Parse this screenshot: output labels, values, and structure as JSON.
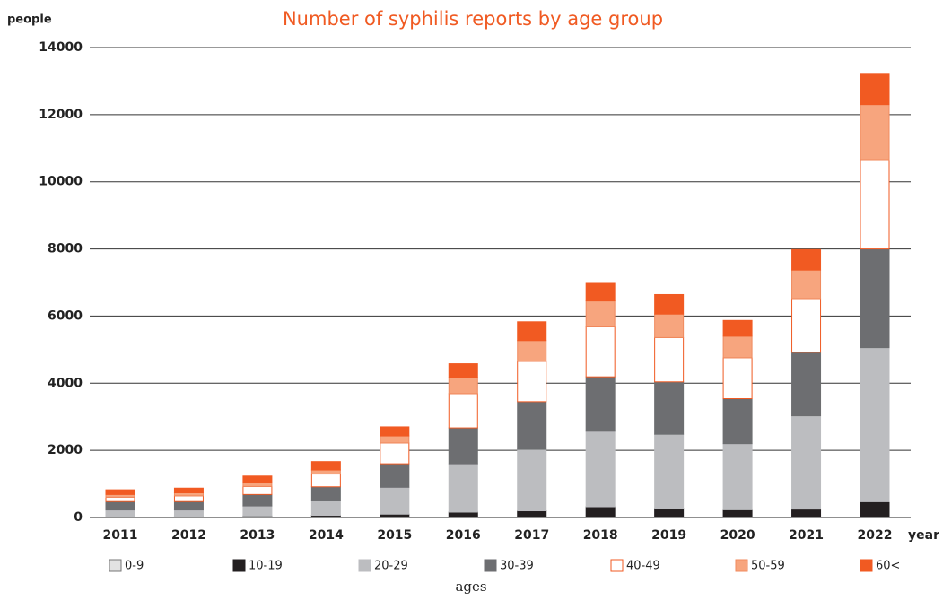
{
  "chart_data": {
    "type": "stacked_bar",
    "title": "Number of syphilis reports by age group",
    "y_label": "people",
    "x_label": "year",
    "legend_title": "ages",
    "categories": [
      "2011",
      "2012",
      "2013",
      "2014",
      "2015",
      "2016",
      "2017",
      "2018",
      "2019",
      "2020",
      "2021",
      "2022"
    ],
    "series": [
      {
        "name": "0-9",
        "color": "#e2e2e2",
        "edgecolor": "#777777",
        "values": [
          5,
          5,
          5,
          5,
          5,
          5,
          5,
          5,
          5,
          5,
          5,
          5
        ]
      },
      {
        "name": "10-19",
        "color": "#231f20",
        "edgecolor": "#231f20",
        "values": [
          20,
          20,
          40,
          60,
          95,
          155,
          195,
          315,
          275,
          225,
          245,
          465
        ]
      },
      {
        "name": "20-29",
        "color": "#bcbdc0",
        "edgecolor": "#bcbdc0",
        "values": [
          200,
          200,
          300,
          430,
          800,
          1440,
          1830,
          2250,
          2200,
          1970,
          2780,
          4590
        ]
      },
      {
        "name": "30-39",
        "color": "#6d6e71",
        "edgecolor": "#6d6e71",
        "values": [
          250,
          250,
          340,
          420,
          700,
          1070,
          1420,
          1620,
          1560,
          1340,
          1890,
          2940
        ]
      },
      {
        "name": "40-49",
        "color": "#ffffff",
        "edgecolor": "#f05a22",
        "values": [
          130,
          170,
          240,
          380,
          620,
          1020,
          1200,
          1490,
          1320,
          1220,
          1600,
          2660
        ]
      },
      {
        "name": "50-59",
        "color": "#f7a57e",
        "edgecolor": "#f08a5e",
        "values": [
          80,
          90,
          110,
          120,
          210,
          480,
          620,
          770,
          700,
          640,
          850,
          1640
        ]
      },
      {
        "name": "60<",
        "color": "#f15a22",
        "edgecolor": "#f15a22",
        "values": [
          140,
          140,
          200,
          250,
          270,
          410,
          560,
          550,
          580,
          470,
          610,
          930
        ]
      }
    ],
    "ylim": [
      0,
      14000
    ],
    "yticks": [
      0,
      2000,
      4000,
      6000,
      8000,
      10000,
      12000,
      14000
    ],
    "grid": true,
    "legend": "bottom"
  }
}
